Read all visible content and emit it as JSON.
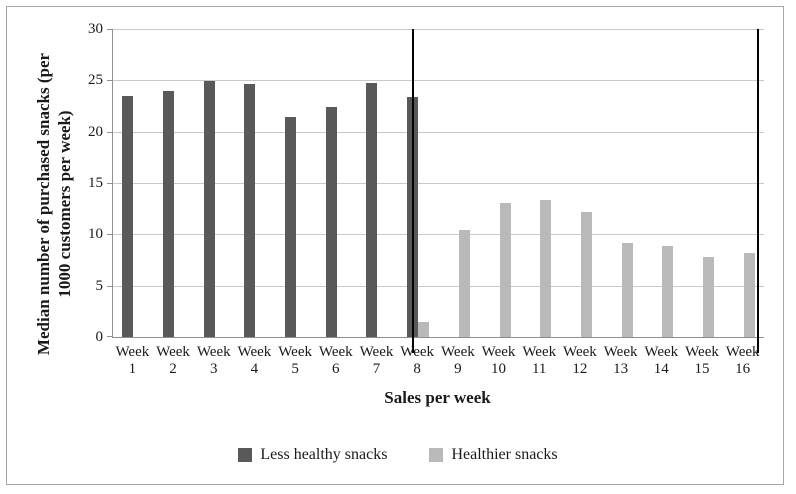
{
  "figure": {
    "background": "#ffffff",
    "border_color": "#a6a6a6"
  },
  "chart_data": {
    "type": "bar",
    "title": "",
    "xlabel": "Sales per week",
    "ylabel": "Median number of purchased snacks (per 1000 customers per week)",
    "ylabel_lines": [
      "Median number of purchased snacks (per",
      "1000 customers per week)"
    ],
    "ylim": [
      0,
      30
    ],
    "yticks": [
      0,
      5,
      10,
      15,
      20,
      25,
      30
    ],
    "grid": "horizontal",
    "legend_position": "bottom-center",
    "axis_color": "#8f8f8f",
    "gridline_color": "#c9c9c9",
    "text_color": "#1a1a1a",
    "categories": [
      "Week 1",
      "Week 2",
      "Week 3",
      "Week 4",
      "Week 5",
      "Week 6",
      "Week 7",
      "Week 8",
      "Week 9",
      "Week 10",
      "Week 11",
      "Week 12",
      "Week 13",
      "Week 14",
      "Week 15",
      "Week 16"
    ],
    "series": [
      {
        "name": "Less healthy snacks",
        "color": "#595959",
        "values": [
          23.5,
          24.0,
          24.9,
          24.6,
          21.4,
          22.4,
          24.7,
          23.4,
          0,
          0,
          0,
          0,
          0,
          0,
          0,
          0
        ]
      },
      {
        "name": "Healthier snacks",
        "color": "#b9b9b9",
        "values": [
          0,
          0,
          0,
          0,
          0,
          0,
          0,
          1.5,
          10.4,
          13.1,
          13.3,
          12.2,
          9.2,
          8.9,
          7.8,
          8.2
        ]
      }
    ],
    "vlines": [
      {
        "x_fraction": 0.461,
        "color": "#000000",
        "note": "black separator line at Week 8"
      },
      {
        "x_fraction": 0.991,
        "color": "#000000",
        "note": "black separator line after Week 16"
      }
    ]
  }
}
